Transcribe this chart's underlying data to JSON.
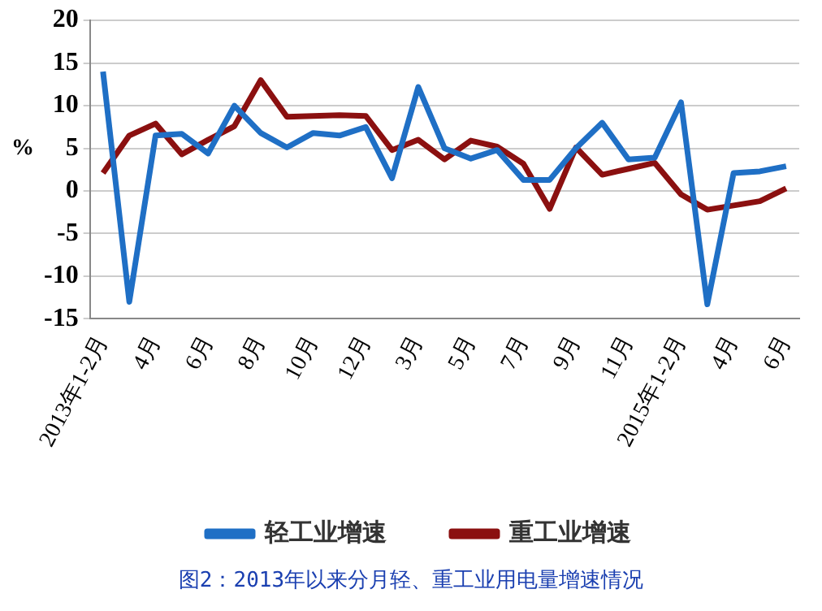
{
  "chart_data": {
    "type": "line",
    "title": "图2：2013年以来分月轻、重工业用电量增速情况",
    "ylabel": "%",
    "categories": [
      "2013年1-2月",
      null,
      "4月",
      null,
      "6月",
      null,
      "8月",
      null,
      "10月",
      null,
      "12月",
      null,
      "3月",
      null,
      "5月",
      null,
      "7月",
      null,
      "9月",
      null,
      "11月",
      null,
      "2015年1-2月",
      null,
      "4月",
      null,
      "6月"
    ],
    "series": [
      {
        "name": "轻工业增速",
        "color": "#1f6fc5",
        "values": [
          14,
          -13,
          6.5,
          6.7,
          4.4,
          10,
          6.8,
          5.1,
          6.8,
          6.5,
          7.5,
          1.5,
          12.2,
          5,
          3.8,
          4.8,
          1.3,
          1.3,
          5,
          8,
          3.7,
          3.9,
          10.4,
          -13.3,
          2.1,
          2.3,
          2.9
        ]
      },
      {
        "name": "重工业增速",
        "color": "#8b1010",
        "values": [
          2.1,
          6.5,
          7.9,
          4.3,
          6,
          7.6,
          13,
          8.7,
          8.8,
          8.9,
          8.8,
          4.8,
          6,
          3.7,
          5.9,
          5.2,
          3.2,
          -2.1,
          5.1,
          1.9,
          2.6,
          3.3,
          -0.4,
          -2.2,
          -1.7,
          -1.2,
          0.3
        ]
      }
    ],
    "ylim": [
      -15,
      20
    ],
    "yticks": [
      -15,
      -10,
      -5,
      0,
      5,
      10,
      15,
      20
    ],
    "grid": "y",
    "legend": "bottom",
    "marker": "none",
    "line_style": "solid"
  }
}
